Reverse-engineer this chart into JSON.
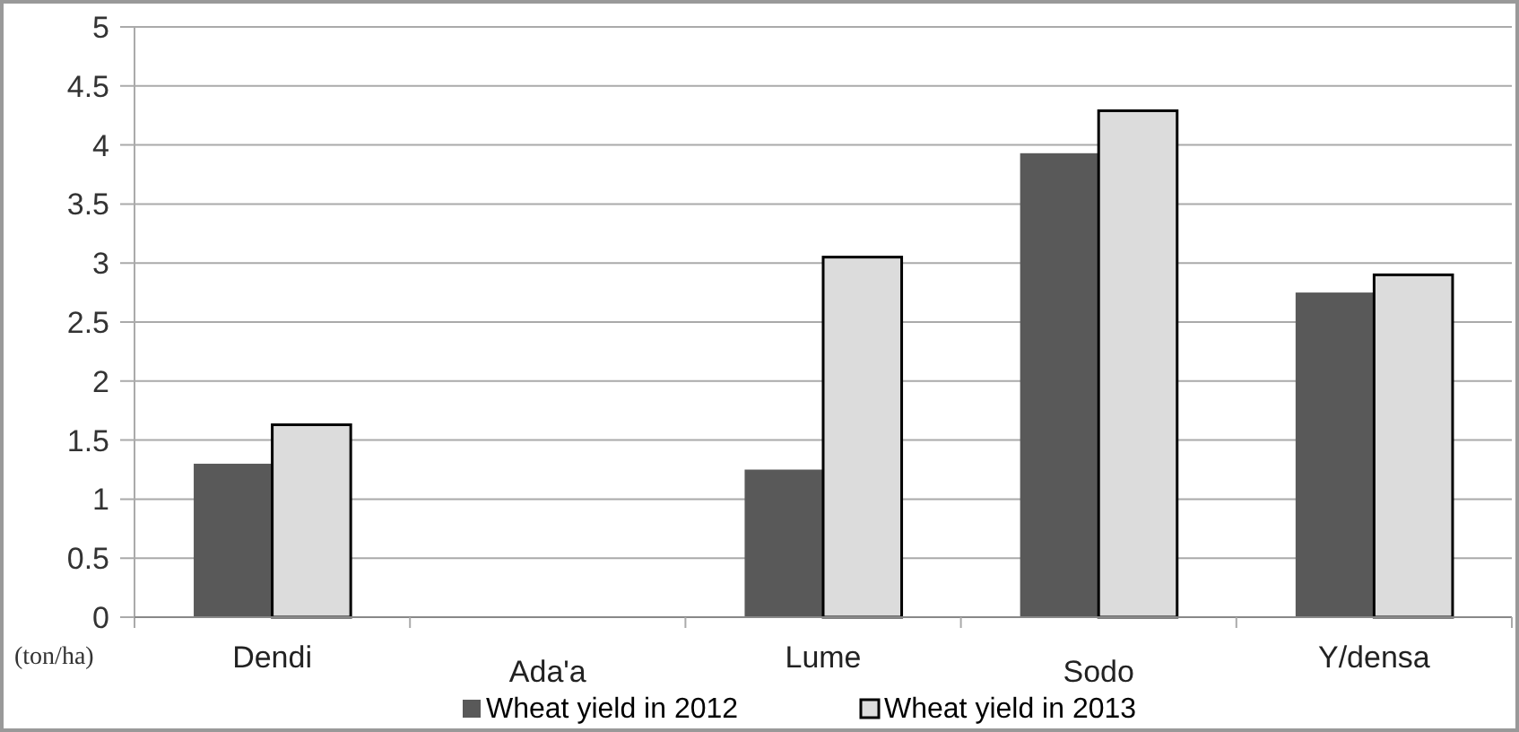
{
  "chart_data": {
    "type": "bar",
    "ylabel": "(ton/ha)",
    "categories": [
      "Dendi",
      "Ada'a",
      "Lume",
      "Sodo",
      "Y/densa"
    ],
    "series": [
      {
        "name": "Wheat yield in 2012",
        "color": "#595959",
        "values": [
          1.3,
          null,
          1.25,
          3.93,
          2.75
        ]
      },
      {
        "name": "Wheat yield in 2013",
        "color": "#dcdcdc",
        "values": [
          1.63,
          null,
          3.05,
          4.29,
          2.9
        ]
      }
    ],
    "ylim": [
      0,
      5
    ],
    "yticks": [
      0,
      0.5,
      1,
      1.5,
      2,
      2.5,
      3,
      3.5,
      4,
      4.5,
      5
    ],
    "grid": "y",
    "legend": "bottom"
  }
}
